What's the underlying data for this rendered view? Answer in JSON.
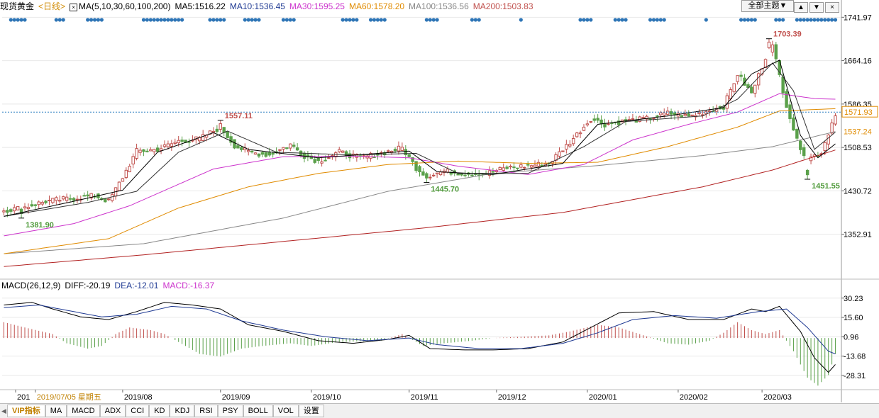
{
  "header": {
    "symbol": "现货黄金",
    "period": "<日线>",
    "ma_toggle": "MA(5,10,30,60,100,200)",
    "ma5": "MA5:1516.22",
    "ma10": "MA10:1536.45",
    "ma30": "MA30:1595.25",
    "ma60": "MA60:1578.20",
    "ma100": "MA100:1536.56",
    "ma200": "MA200:1503.83",
    "theme_button": "全部主题▼",
    "ctrl_buttons": [
      "▲",
      "▼",
      "×"
    ]
  },
  "macd_header": {
    "title": "MACD(26,12,9)",
    "diff": "DIFF:-20.19",
    "dea": "DEA:-12.01",
    "macd": "MACD:-16.37"
  },
  "colors": {
    "up": "#c0504d",
    "down": "#5aa04a",
    "ma5": "#000000",
    "ma10": "#333333",
    "ma30": "#cc33cc",
    "ma60": "#e08b00",
    "ma100": "#888888",
    "ma200": "#b22222",
    "grid": "#e8e8e8",
    "dotted_price": "#2a7fbf",
    "event_dot": "#2e75b6"
  },
  "tabs": [
    "VIP指标",
    "MA",
    "MACD",
    "ADX",
    "CCI",
    "KD",
    "KDJ",
    "RSI",
    "PSY",
    "BOLL",
    "VOL",
    "设置"
  ],
  "chart_data": [
    {
      "type": "candlestick",
      "title": "现货黄金 日线",
      "y_ticks": [
        "1741.97",
        "1664.16",
        "1586.35",
        "1508.53",
        "1430.72",
        "1352.91"
      ],
      "ylim": [
        1275,
        1750
      ],
      "x_labels": [
        "201",
        "2019/07/05 星期五",
        "2019/08",
        "2019/09",
        "2019/10",
        "2019/11",
        "2019/12",
        "2020/01",
        "2020/02",
        "2020/03"
      ],
      "x_label_index": [
        0,
        9,
        34,
        62,
        88,
        116,
        141,
        167,
        193,
        217
      ],
      "candle_count": 239,
      "last_price": "1571.93",
      "last_price_value": 1571.93,
      "side_label": "1537.24",
      "side_label_value": 1537.24,
      "annotations": [
        {
          "text": "1703.39",
          "index": 219,
          "value": 1703.39,
          "kind": "high"
        },
        {
          "text": "1557.11",
          "index": 62,
          "value": 1557.11,
          "kind": "high"
        },
        {
          "text": "1381.90",
          "index": 5,
          "value": 1381.9,
          "kind": "low"
        },
        {
          "text": "1445.70",
          "index": 121,
          "value": 1445.7,
          "kind": "low"
        },
        {
          "text": "1451.55",
          "index": 230,
          "value": 1451.55,
          "kind": "low"
        }
      ],
      "close_anchors": [
        [
          0,
          1396
        ],
        [
          5,
          1400
        ],
        [
          12,
          1412
        ],
        [
          20,
          1418
        ],
        [
          26,
          1422
        ],
        [
          30,
          1412
        ],
        [
          34,
          1455
        ],
        [
          38,
          1502
        ],
        [
          44,
          1505
        ],
        [
          50,
          1520
        ],
        [
          56,
          1524
        ],
        [
          62,
          1545
        ],
        [
          66,
          1512
        ],
        [
          70,
          1500
        ],
        [
          76,
          1495
        ],
        [
          82,
          1514
        ],
        [
          86,
          1494
        ],
        [
          90,
          1484
        ],
        [
          96,
          1500
        ],
        [
          102,
          1490
        ],
        [
          108,
          1498
        ],
        [
          114,
          1508
        ],
        [
          118,
          1472
        ],
        [
          121,
          1458
        ],
        [
          126,
          1466
        ],
        [
          132,
          1462
        ],
        [
          138,
          1462
        ],
        [
          144,
          1472
        ],
        [
          150,
          1476
        ],
        [
          156,
          1480
        ],
        [
          162,
          1518
        ],
        [
          168,
          1560
        ],
        [
          172,
          1550
        ],
        [
          178,
          1556
        ],
        [
          184,
          1560
        ],
        [
          190,
          1570
        ],
        [
          196,
          1564
        ],
        [
          202,
          1575
        ],
        [
          206,
          1582
        ],
        [
          210,
          1640
        ],
        [
          214,
          1605
        ],
        [
          218,
          1670
        ],
        [
          220,
          1690
        ],
        [
          224,
          1585
        ],
        [
          227,
          1520
        ],
        [
          230,
          1488
        ],
        [
          234,
          1500
        ],
        [
          238,
          1570
        ]
      ],
      "ma_anchors": {
        "ma5": [
          [
            0,
            1385
          ],
          [
            20,
            1412
          ],
          [
            34,
            1432
          ],
          [
            44,
            1500
          ],
          [
            60,
            1535
          ],
          [
            70,
            1505
          ],
          [
            90,
            1490
          ],
          [
            116,
            1502
          ],
          [
            124,
            1465
          ],
          [
            140,
            1460
          ],
          [
            160,
            1480
          ],
          [
            170,
            1550
          ],
          [
            190,
            1565
          ],
          [
            206,
            1580
          ],
          [
            214,
            1640
          ],
          [
            222,
            1665
          ],
          [
            228,
            1530
          ],
          [
            233,
            1490
          ],
          [
            238,
            1515
          ]
        ],
        "ma10": [
          [
            0,
            1385
          ],
          [
            24,
            1410
          ],
          [
            38,
            1430
          ],
          [
            50,
            1500
          ],
          [
            64,
            1538
          ],
          [
            78,
            1500
          ],
          [
            100,
            1495
          ],
          [
            118,
            1498
          ],
          [
            130,
            1462
          ],
          [
            150,
            1462
          ],
          [
            166,
            1510
          ],
          [
            178,
            1555
          ],
          [
            200,
            1565
          ],
          [
            210,
            1595
          ],
          [
            220,
            1660
          ],
          [
            226,
            1610
          ],
          [
            232,
            1505
          ],
          [
            238,
            1536
          ]
        ],
        "ma30": [
          [
            0,
            1350
          ],
          [
            20,
            1372
          ],
          [
            36,
            1404
          ],
          [
            60,
            1470
          ],
          [
            80,
            1492
          ],
          [
            100,
            1493
          ],
          [
            116,
            1490
          ],
          [
            130,
            1475
          ],
          [
            150,
            1460
          ],
          [
            166,
            1478
          ],
          [
            180,
            1522
          ],
          [
            196,
            1550
          ],
          [
            210,
            1572
          ],
          [
            222,
            1605
          ],
          [
            232,
            1596
          ],
          [
            238,
            1595
          ]
        ],
        "ma60": [
          [
            0,
            1318
          ],
          [
            30,
            1345
          ],
          [
            50,
            1400
          ],
          [
            70,
            1438
          ],
          [
            90,
            1462
          ],
          [
            110,
            1478
          ],
          [
            130,
            1484
          ],
          [
            150,
            1480
          ],
          [
            170,
            1482
          ],
          [
            190,
            1510
          ],
          [
            210,
            1545
          ],
          [
            222,
            1574
          ],
          [
            238,
            1578
          ]
        ],
        "ma100": [
          [
            0,
            1318
          ],
          [
            40,
            1336
          ],
          [
            80,
            1382
          ],
          [
            110,
            1430
          ],
          [
            140,
            1462
          ],
          [
            170,
            1476
          ],
          [
            200,
            1494
          ],
          [
            220,
            1510
          ],
          [
            238,
            1537
          ]
        ],
        "ma200": [
          [
            0,
            1295
          ],
          [
            40,
            1316
          ],
          [
            80,
            1340
          ],
          [
            120,
            1364
          ],
          [
            160,
            1392
          ],
          [
            200,
            1438
          ],
          [
            220,
            1468
          ],
          [
            238,
            1504
          ]
        ]
      },
      "event_markers": [
        [
          2,
          6
        ],
        [
          15,
          17
        ],
        [
          24,
          28
        ],
        [
          40,
          51
        ],
        [
          59,
          63
        ],
        [
          69,
          73
        ],
        [
          80,
          83
        ],
        [
          97,
          101
        ],
        [
          105,
          109
        ],
        [
          121,
          124
        ],
        [
          134,
          136
        ],
        [
          148,
          148
        ],
        [
          165,
          168
        ],
        [
          175,
          178
        ],
        [
          185,
          189
        ],
        [
          201,
          201
        ],
        [
          211,
          215
        ],
        [
          221,
          223
        ],
        [
          227,
          238
        ]
      ]
    },
    {
      "type": "macd",
      "title": "MACD(26,12,9)",
      "y_ticks": [
        "30.23",
        "15.60",
        "0.96",
        "-13.68",
        "-28.31"
      ],
      "ylim": [
        -38,
        36
      ],
      "diff_anchors": [
        [
          0,
          25
        ],
        [
          8,
          27
        ],
        [
          14,
          22
        ],
        [
          22,
          16
        ],
        [
          30,
          14
        ],
        [
          38,
          20
        ],
        [
          46,
          27
        ],
        [
          54,
          25
        ],
        [
          62,
          22
        ],
        [
          70,
          10
        ],
        [
          80,
          5
        ],
        [
          90,
          -2
        ],
        [
          100,
          -4
        ],
        [
          110,
          -1
        ],
        [
          116,
          2
        ],
        [
          122,
          -8
        ],
        [
          132,
          -9
        ],
        [
          140,
          -9
        ],
        [
          150,
          -8
        ],
        [
          160,
          -3
        ],
        [
          168,
          8
        ],
        [
          176,
          19
        ],
        [
          186,
          20
        ],
        [
          196,
          14
        ],
        [
          206,
          14
        ],
        [
          214,
          22
        ],
        [
          218,
          20
        ],
        [
          222,
          24
        ],
        [
          228,
          5
        ],
        [
          232,
          -15
        ],
        [
          236,
          -26
        ],
        [
          238,
          -20
        ]
      ],
      "dea_anchors": [
        [
          0,
          23
        ],
        [
          10,
          25
        ],
        [
          18,
          21
        ],
        [
          28,
          16
        ],
        [
          38,
          18
        ],
        [
          48,
          24
        ],
        [
          58,
          22
        ],
        [
          68,
          13
        ],
        [
          80,
          6
        ],
        [
          92,
          1
        ],
        [
          104,
          -2
        ],
        [
          116,
          0
        ],
        [
          124,
          -5
        ],
        [
          136,
          -8
        ],
        [
          148,
          -8
        ],
        [
          160,
          -4
        ],
        [
          170,
          4
        ],
        [
          180,
          14
        ],
        [
          192,
          17
        ],
        [
          204,
          15
        ],
        [
          216,
          20
        ],
        [
          224,
          22
        ],
        [
          230,
          8
        ],
        [
          236,
          -10
        ],
        [
          238,
          -12
        ]
      ],
      "hist_anchors": [
        [
          0,
          12
        ],
        [
          6,
          8
        ],
        [
          14,
          3
        ],
        [
          18,
          -4
        ],
        [
          24,
          -8
        ],
        [
          28,
          -6
        ],
        [
          32,
          3
        ],
        [
          36,
          8
        ],
        [
          42,
          6
        ],
        [
          46,
          3
        ],
        [
          52,
          -6
        ],
        [
          56,
          -12
        ],
        [
          62,
          -14
        ],
        [
          68,
          -8
        ],
        [
          74,
          -6
        ],
        [
          82,
          -4
        ],
        [
          88,
          -6
        ],
        [
          96,
          -3
        ],
        [
          108,
          -2
        ],
        [
          114,
          3
        ],
        [
          120,
          -6
        ],
        [
          126,
          -4
        ],
        [
          134,
          -2
        ],
        [
          140,
          0
        ],
        [
          148,
          1
        ],
        [
          156,
          2
        ],
        [
          162,
          5
        ],
        [
          170,
          10
        ],
        [
          176,
          8
        ],
        [
          182,
          3
        ],
        [
          190,
          -4
        ],
        [
          196,
          -5
        ],
        [
          202,
          -2
        ],
        [
          206,
          4
        ],
        [
          210,
          12
        ],
        [
          214,
          6
        ],
        [
          218,
          3
        ],
        [
          222,
          6
        ],
        [
          226,
          -10
        ],
        [
          230,
          -30
        ],
        [
          233,
          -36
        ],
        [
          236,
          -28
        ],
        [
          238,
          -12
        ]
      ]
    }
  ]
}
